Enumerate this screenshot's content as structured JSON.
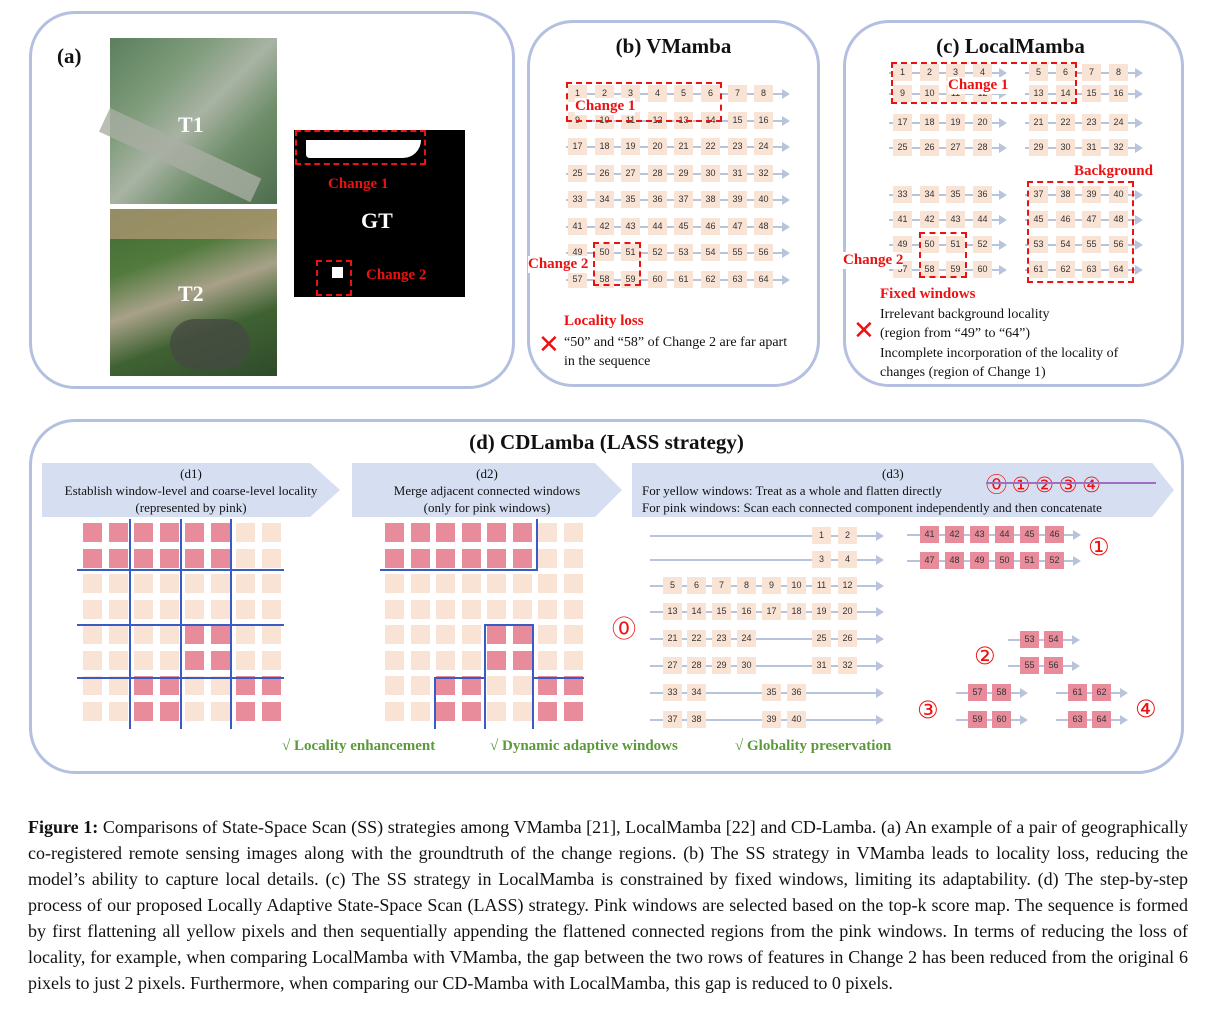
{
  "panel_a": {
    "label": "(a)",
    "t1": "T1",
    "t2": "T2",
    "gt": "GT",
    "change1": "Change 1",
    "change2": "Change 2"
  },
  "panel_b": {
    "title": "(b) VMamba",
    "change1": "Change 1",
    "change2": "Change 2",
    "loss_title": "Locality loss",
    "loss_text": "“50” and “58” of Change 2 are far apart in the sequence"
  },
  "panel_c": {
    "title": "(c) LocalMamba",
    "change1": "Change 1",
    "change2": "Change 2",
    "background": "Background",
    "fixed_title": "Fixed windows",
    "fixed_l1": "Irrelevant background locality",
    "fixed_l2": "(region from “49” to “64”)",
    "fixed_l3": "Incomplete incorporation of the locality of",
    "fixed_l4": "changes (region of Change 1)"
  },
  "panel_d": {
    "title": "(d) CDLamba (LASS strategy)",
    "d1_label": "(d1)",
    "d1_l1": "Establish window-level and coarse-level locality",
    "d1_l2": "(represented by pink)",
    "d2_label": "(d2)",
    "d2_l1": "Merge adjacent connected windows",
    "d2_l2": "(only for pink windows)",
    "d3_label": "(d3)",
    "d3_l1": "For yellow windows: Treat as a whole and flatten directly",
    "d3_l2": "For pink windows: Scan each connected component independently and then concatenate",
    "order_marks": "⓪ ① ② ③ ④",
    "c0": "⓪",
    "c1": "①",
    "c2": "②",
    "c3": "③",
    "c4": "④",
    "check1": "√  Locality enhancement",
    "check2": "√  Dynamic adaptive windows",
    "check3": "√  Globality preservation"
  },
  "caption": {
    "label": "Figure 1:",
    "text": " Comparisons of State-Space Scan (SS) strategies among VMamba [21], LocalMamba [22] and CD-Lamba. (a) An example of a pair of geographically co-registered remote sensing images along with the groundtruth of the change regions. (b) The SS strategy in VMamba leads to locality loss, reducing the model’s ability to capture local details. (c) The SS strategy in LocalMamba is constrained by fixed windows, limiting its adaptability. (d) The step-by-step process of our proposed Locally Adaptive State-Space Scan (LASS) strategy. Pink windows are selected based on the top-k score map. The sequence is formed by first flattening all yellow pixels and then sequentially appending the flattened connected regions from the pink windows. In terms of reducing the loss of locality, for example, when comparing LocalMamba with VMamba, the gap between the two rows of features in Change 2 has been reduced from the original 6 pixels to just 2 pixels. Furthermore, when comparing our CD-Mamba with LocalMamba, this gap is reduced to 0 pixels."
  }
}
